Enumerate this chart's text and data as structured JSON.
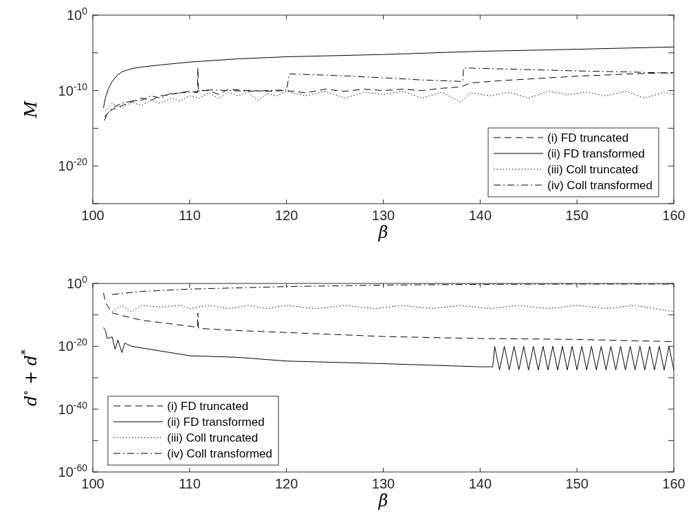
{
  "chart_data": [
    {
      "type": "line",
      "ylabel": "M",
      "xlabel": "β",
      "log": "y",
      "legend": "bottom right",
      "grid": false,
      "xlim": [
        100,
        160
      ],
      "xticks": [
        100,
        110,
        120,
        130,
        140,
        150,
        160
      ],
      "ylim": [
        1e-25,
        1
      ],
      "yticks": [
        {
          "value": 1,
          "label": "10$^{0}$"
        },
        {
          "value": 1e-05,
          "label": null
        },
        {
          "value": 1e-10,
          "label": "10$^{-10}$"
        },
        {
          "value": 1e-15,
          "label": null
        },
        {
          "value": 1e-20,
          "label": "10$^{-20}$"
        },
        {
          "value": 1e-25,
          "label": null
        }
      ],
      "series": [
        {
          "name": "(i) FD truncated",
          "color": "#000000",
          "line_style": "dashed",
          "x": [
            101.2,
            101.5,
            102,
            103,
            104,
            105,
            106,
            107,
            108,
            109,
            110,
            110.8,
            110.85,
            110.9,
            112,
            113,
            114,
            116,
            118,
            120,
            122,
            124,
            126,
            128,
            130,
            132,
            134,
            136,
            138,
            139,
            142,
            146,
            150,
            155,
            160
          ],
          "values": [
            1e-14,
            1e-13,
            3e-13,
            1e-12,
            3e-12,
            1e-11,
            5e-12,
            2e-11,
            3e-11,
            5e-11,
            8e-11,
            5e-11,
            1e-07,
            1e-10,
            1e-10,
            3e-11,
            1.5e-10,
            1e-10,
            8e-11,
            1e-10,
            5e-11,
            1.5e-10,
            8e-11,
            1.5e-10,
            1e-10,
            1.5e-10,
            1e-10,
            2e-10,
            3e-10,
            1e-09,
            2e-09,
            4e-09,
            8e-09,
            1.5e-08,
            2.5e-08
          ]
        },
        {
          "name": "(ii) FD transformed",
          "color": "#000000",
          "line_style": "solid",
          "x": [
            101.1,
            101.3,
            101.6,
            102,
            102.5,
            103,
            104,
            105,
            107,
            110,
            115,
            120,
            130,
            140,
            150,
            160
          ],
          "values": [
            5e-13,
            1e-11,
            1.6e-10,
            1.6e-09,
            1e-08,
            3e-08,
            8e-08,
            1.3e-07,
            2.5e-07,
            6e-07,
            1.6e-06,
            3e-06,
            6e-06,
            1.6e-05,
            3e-05,
            6e-05
          ]
        },
        {
          "name": "(iii) Coll truncated",
          "color": "#000000",
          "line_style": "dotted",
          "x": [
            101.3,
            102,
            103,
            104,
            105,
            106,
            107,
            108,
            109,
            110,
            111,
            112,
            113,
            114,
            115,
            116,
            117,
            118,
            119,
            120,
            122,
            124,
            126,
            128,
            130,
            132,
            134,
            136,
            138,
            139,
            141,
            143,
            145,
            147,
            149,
            151,
            153,
            155,
            157,
            159,
            160
          ],
          "values": [
            2e-13,
            2e-12,
            5e-13,
            3e-12,
            1e-12,
            5e-12,
            2e-12,
            1e-11,
            4e-12,
            2e-11,
            1e-11,
            5e-11,
            8e-12,
            6e-11,
            2e-11,
            6e-11,
            5e-12,
            4e-11,
            2e-11,
            8e-11,
            2e-11,
            8e-11,
            1e-11,
            6e-11,
            3e-11,
            8e-11,
            1e-11,
            6e-11,
            3e-12,
            5e-11,
            2e-11,
            6e-11,
            1e-11,
            8e-11,
            3e-11,
            6e-11,
            2e-11,
            8e-11,
            1e-11,
            6e-11,
            3e-11
          ]
        },
        {
          "name": "(iv) Coll transformed",
          "color": "#000000",
          "line_style": "dashdot",
          "x": [
            101.2,
            102,
            103,
            104,
            105,
            106,
            107,
            108,
            110,
            112,
            114,
            116,
            118,
            120,
            120.3,
            125,
            130,
            134,
            138.2,
            138.3,
            145,
            150,
            155,
            160
          ],
          "values": [
            3e-14,
            5e-13,
            2e-12,
            4e-12,
            5e-12,
            2e-11,
            1e-11,
            4e-11,
            6e-11,
            1.2e-10,
            1e-10,
            8e-11,
            1e-10,
            1.2e-10,
            1.6e-08,
            1e-08,
            5e-09,
            2.5e-09,
            1.6e-09,
            1e-07,
            6e-08,
            4e-08,
            3e-08,
            2e-08
          ]
        }
      ]
    },
    {
      "type": "line",
      "ylabel": "d$^{∘}$ + d$^{*}$",
      "xlabel": "β",
      "log": "y",
      "legend": "bottom left",
      "grid": false,
      "xlim": [
        100,
        160
      ],
      "xticks": [
        100,
        110,
        120,
        130,
        140,
        150,
        160
      ],
      "ylim": [
        1e-60,
        1
      ],
      "yticks": [
        {
          "value": 1,
          "label": "10$^{0}$"
        },
        {
          "value": 1e-10,
          "label": null
        },
        {
          "value": 1e-20,
          "label": "10$^{-20}$"
        },
        {
          "value": 1e-30,
          "label": null
        },
        {
          "value": 1e-40,
          "label": "10$^{-40}$"
        },
        {
          "value": 1e-50,
          "label": null
        },
        {
          "value": 1e-60,
          "label": "10$^{-60}$"
        }
      ],
      "series": [
        {
          "name": "(i) FD truncated",
          "color": "#000000",
          "line_style": "dashed",
          "x": [
            101.1,
            101.3,
            102,
            105,
            110,
            110.8,
            110.85,
            110.9,
            115,
            120,
            130,
            140,
            150,
            160
          ],
          "values": [
            0.001,
            1e-06,
            4e-10,
            2e-12,
            2.5e-14,
            1e-14,
            4e-10,
            5e-15,
            1e-15,
            2.5e-16,
            1.3e-17,
            3e-18,
            1.5e-18,
            3e-19
          ]
        },
        {
          "name": "(ii) FD transformed",
          "color": "#000000",
          "line_style": "solid",
          "x": [
            101.1,
            101.3,
            101.5,
            102,
            102.3,
            102.6,
            103,
            103.3,
            104,
            106,
            110,
            115,
            120,
            130,
            140,
            141.3,
            141.5,
            142,
            142.5,
            143,
            143.5,
            144,
            144.5,
            145,
            145.5,
            146,
            146.5,
            147,
            147.5,
            148,
            148.5,
            149,
            149.5,
            150,
            150.5,
            151,
            151.5,
            152,
            152.5,
            153,
            153.5,
            154,
            154.5,
            155,
            155.5,
            156,
            156.5,
            157,
            157.5,
            158,
            158.5,
            159,
            159.5,
            160
          ],
          "values": [
            1e-14,
            1e-15,
            3e-18,
            1e-17,
            1e-21,
            1e-18,
            1e-22,
            1e-19,
            1e-20,
            1e-21,
            1e-23,
            3e-24,
            2e-25,
            3e-26,
            3e-27,
            3e-27,
            1e-20,
            3e-28,
            1e-20,
            3e-28,
            1e-20,
            3e-28,
            1e-20,
            3e-28,
            1e-20,
            3e-28,
            1e-20,
            3e-28,
            1e-20,
            3e-28,
            1e-20,
            3e-28,
            1e-20,
            3e-28,
            1e-20,
            3e-28,
            1e-20,
            3e-28,
            1e-20,
            3e-28,
            1e-20,
            3e-28,
            1e-20,
            3e-28,
            1e-20,
            3e-28,
            1e-20,
            3e-28,
            1e-20,
            3e-28,
            1e-20,
            3e-28,
            1e-20,
            3e-28
          ]
        },
        {
          "name": "(iii) Coll truncated",
          "color": "#000000",
          "line_style": "dotted",
          "x": [
            102,
            103,
            104,
            105,
            107,
            109,
            110,
            112,
            114,
            116,
            118,
            120,
            123,
            126,
            129,
            132,
            135,
            138,
            141,
            144,
            147,
            150,
            153,
            156,
            160
          ],
          "values": [
            1e-09,
            1e-07,
            1e-09,
            1e-07,
            3e-08,
            1e-07,
            1e-08,
            1e-07,
            1e-08,
            1e-07,
            1e-08,
            1e-07,
            1e-08,
            1e-07,
            1e-08,
            1e-07,
            1e-08,
            1e-07,
            1e-08,
            1e-07,
            1e-08,
            1e-07,
            1e-08,
            1e-07,
            1e-09
          ]
        },
        {
          "name": "(iv) Coll transformed",
          "color": "#000000",
          "line_style": "dashdot",
          "x": [
            102,
            105,
            110,
            120,
            130,
            140,
            150,
            160
          ],
          "values": [
            0.0003,
            0.003,
            0.016,
            0.1,
            0.3,
            0.5,
            0.6,
            0.6
          ]
        }
      ]
    }
  ]
}
